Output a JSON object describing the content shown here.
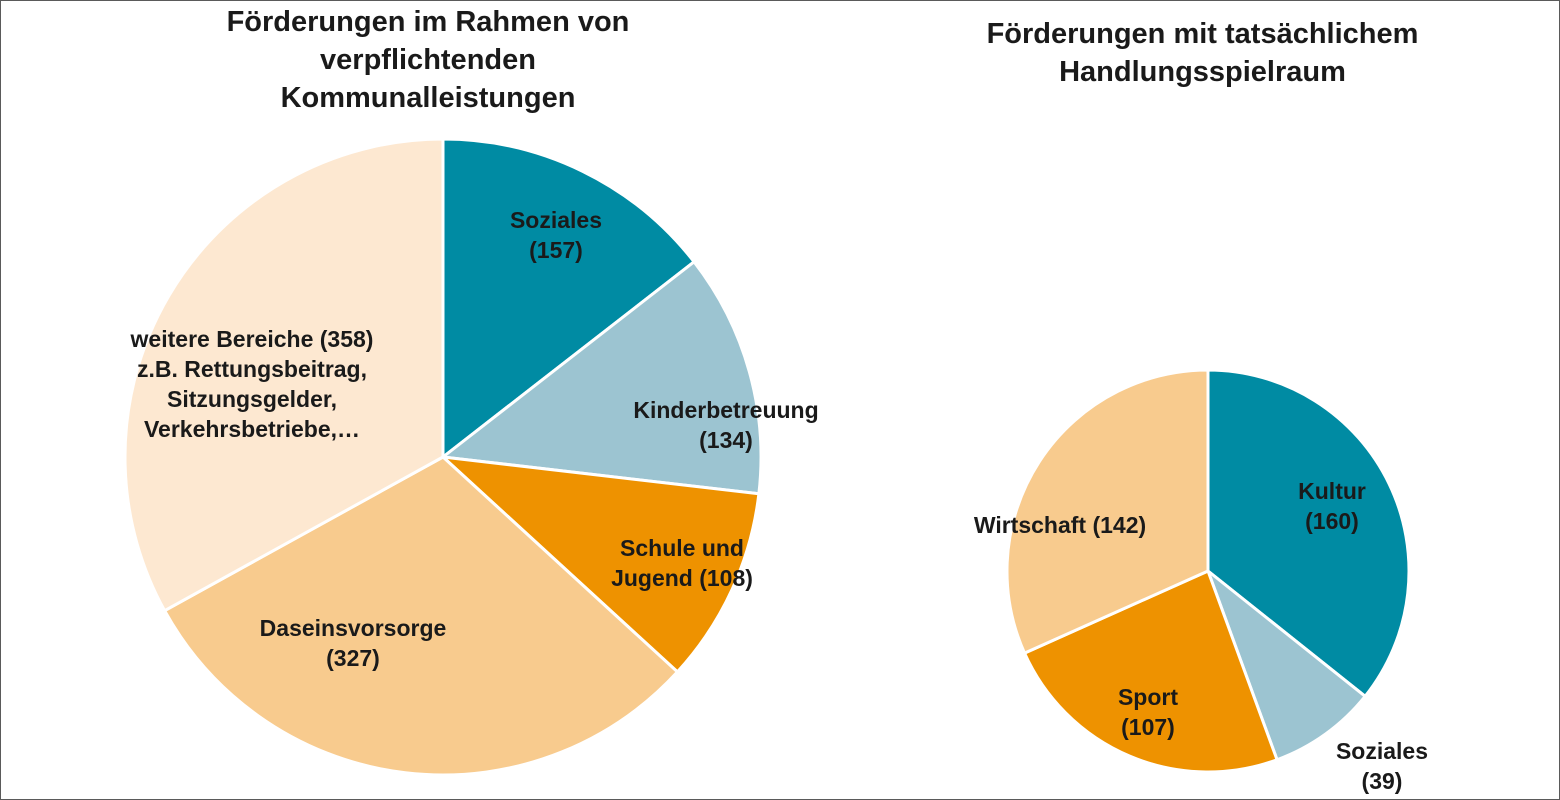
{
  "chart_data": [
    {
      "type": "pie",
      "title_lines": [
        "Förderungen im Rahmen von",
        "verpflichtenden",
        "Kommunalleistungen"
      ],
      "start_angle_deg": 0,
      "direction": "clockwise",
      "slices": [
        {
          "label_lines": [
            "Soziales",
            "(157)"
          ],
          "value": 157,
          "color": "#008ba3"
        },
        {
          "label_lines": [
            "Kinderbetreuung",
            "(134)"
          ],
          "value": 134,
          "color": "#9cc4d1"
        },
        {
          "label_lines": [
            "Schule und",
            "Jugend (108)"
          ],
          "value": 108,
          "color": "#ee9200"
        },
        {
          "label_lines": [
            "Daseinsvorsorge",
            "(327)"
          ],
          "value": 327,
          "color": "#f8cb8e"
        },
        {
          "label_lines": [
            "weitere Bereiche (358)",
            "z.B. Rettungsbeitrag,",
            "Sitzungsgelder,",
            "Verkehrsbetriebe,…"
          ],
          "value": 358,
          "color": "#fde8d1"
        }
      ]
    },
    {
      "type": "pie",
      "title_lines": [
        "Förderungen mit tatsächlichem",
        "Handlungsspielraum"
      ],
      "start_angle_deg": 0,
      "direction": "clockwise",
      "slices": [
        {
          "label_lines": [
            "Kultur",
            "(160)"
          ],
          "value": 160,
          "color": "#008ba3"
        },
        {
          "label_lines": [
            "Soziales",
            "(39)"
          ],
          "value": 39,
          "color": "#9cc4d1"
        },
        {
          "label_lines": [
            "Sport",
            "(107)"
          ],
          "value": 107,
          "color": "#ee9200"
        },
        {
          "label_lines": [
            "Wirtschaft (142)"
          ],
          "value": 142,
          "color": "#f8cb8e"
        }
      ]
    }
  ]
}
